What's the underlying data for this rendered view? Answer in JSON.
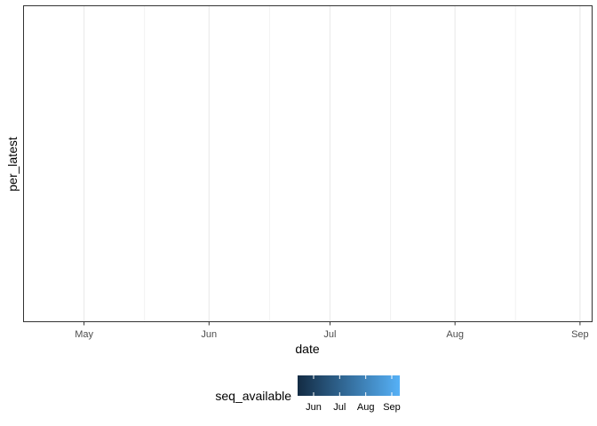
{
  "chart_data": {
    "type": "scatter",
    "title": "",
    "xlabel": "date",
    "ylabel": "per_latest",
    "x_ticks": [
      "May",
      "Jun",
      "Jul",
      "Aug",
      "Sep"
    ],
    "x_tick_dates": [
      "2021-05-01",
      "2021-06-01",
      "2021-07-01",
      "2021-08-01",
      "2021-09-01"
    ],
    "xlim": [
      "2021-04-16",
      "2021-09-04"
    ],
    "minor_grid_dates": [
      "2021-04-16",
      "2021-05-16",
      "2021-06-16",
      "2021-07-16",
      "2021-08-16"
    ],
    "series": [],
    "grid": true,
    "legend": {
      "position": "bottom",
      "title": "seq_available",
      "type": "colorbar",
      "color_low": "#132B43",
      "color_high": "#56B1F7",
      "labels": [
        "Jun",
        "Jul",
        "Aug",
        "Sep"
      ]
    }
  }
}
